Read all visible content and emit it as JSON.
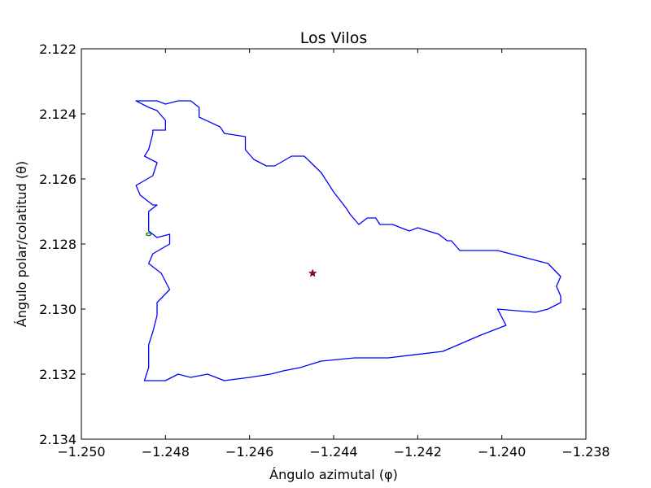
{
  "chart_data": {
    "type": "line",
    "title": "Los Vilos",
    "xlabel": "Ángulo azimutal (φ)",
    "ylabel": "Ángulo polar/colatitud (θ)",
    "xlim": [
      -1.25,
      -1.238
    ],
    "ylim": [
      2.134,
      2.122
    ],
    "y_inverted": true,
    "grid": false,
    "x_ticks": [
      -1.25,
      -1.248,
      -1.246,
      -1.244,
      -1.242,
      -1.24,
      -1.238
    ],
    "x_tick_labels": [
      "−1.250",
      "−1.248",
      "−1.246",
      "−1.244",
      "−1.242",
      "−1.240",
      "−1.238"
    ],
    "y_ticks": [
      2.122,
      2.124,
      2.126,
      2.128,
      2.13,
      2.132,
      2.134
    ],
    "y_tick_labels": [
      "2.122",
      "2.124",
      "2.126",
      "2.128",
      "2.130",
      "2.132",
      "2.134"
    ],
    "series": [
      {
        "kind": "line",
        "color": "#0000ff",
        "x": [
          -1.2477,
          -1.2474,
          -1.2472,
          -1.2472,
          -1.2467,
          -1.2466,
          -1.2461,
          -1.2461,
          -1.2459,
          -1.2456,
          -1.2454,
          -1.245,
          -1.2447,
          -1.2443,
          -1.244,
          -1.2437,
          -1.2436,
          -1.2434,
          -1.2432,
          -1.243,
          -1.2429,
          -1.2426,
          -1.2422,
          -1.242,
          -1.2415,
          -1.2413,
          -1.2412,
          -1.241,
          -1.2405,
          -1.2401,
          -1.2395,
          -1.2389,
          -1.2386,
          -1.2387,
          -1.2386,
          -1.2386,
          -1.2389,
          -1.2392,
          -1.2401,
          -1.2399,
          -1.2405,
          -1.2414,
          -1.2427,
          -1.2432,
          -1.2435,
          -1.2443,
          -1.2448,
          -1.2452,
          -1.2455,
          -1.246,
          -1.2466,
          -1.247,
          -1.2474,
          -1.2477,
          -1.248,
          -1.2485,
          -1.2484,
          -1.2484,
          -1.2484,
          -1.2483,
          -1.2482,
          -1.2482,
          -1.2479,
          -1.2481,
          -1.2484,
          -1.2483,
          -1.2479,
          -1.2479,
          -1.2482,
          -1.2484,
          -1.2484,
          -1.2484,
          -1.2482,
          -1.2483,
          -1.2486,
          -1.2487,
          -1.2483,
          -1.2482,
          -1.2485,
          -1.2484,
          -1.2483,
          -1.2483,
          -1.248,
          -1.248,
          -1.2482,
          -1.2484,
          -1.2487,
          -1.2482,
          -1.248,
          -1.2477
        ],
        "y": [
          2.1236,
          2.1236,
          2.1238,
          2.1241,
          2.1244,
          2.1246,
          2.1247,
          2.1251,
          2.1254,
          2.1256,
          2.1256,
          2.1253,
          2.1253,
          2.1258,
          2.1264,
          2.1269,
          2.1271,
          2.1274,
          2.1272,
          2.1272,
          2.1274,
          2.1274,
          2.1276,
          2.1275,
          2.1277,
          2.1279,
          2.1279,
          2.1282,
          2.1282,
          2.1282,
          2.1284,
          2.1286,
          2.129,
          2.1293,
          2.1296,
          2.1298,
          2.13,
          2.1301,
          2.13,
          2.1305,
          2.1308,
          2.1313,
          2.1315,
          2.1315,
          2.1315,
          2.1316,
          2.1318,
          2.1319,
          2.132,
          2.1321,
          2.1322,
          2.132,
          2.1321,
          2.132,
          2.1322,
          2.1322,
          2.1318,
          2.1315,
          2.1311,
          2.1307,
          2.1302,
          2.1298,
          2.1294,
          2.1289,
          2.1286,
          2.1283,
          2.128,
          2.1277,
          2.1278,
          2.1276,
          2.1272,
          2.127,
          2.1268,
          2.1268,
          2.1265,
          2.1262,
          2.1259,
          2.1255,
          2.1253,
          2.1251,
          2.1246,
          2.1245,
          2.1245,
          2.1242,
          2.1239,
          2.1238,
          2.1236,
          2.1236,
          2.1237,
          2.1236
        ]
      },
      {
        "kind": "marker",
        "shape": "ellipse",
        "color": "#008000",
        "x": [
          -1.2484
        ],
        "y": [
          2.1277
        ]
      },
      {
        "kind": "marker",
        "shape": "star",
        "color": "#cc0000",
        "x": [
          -1.2445
        ],
        "y": [
          2.1289
        ]
      }
    ]
  }
}
